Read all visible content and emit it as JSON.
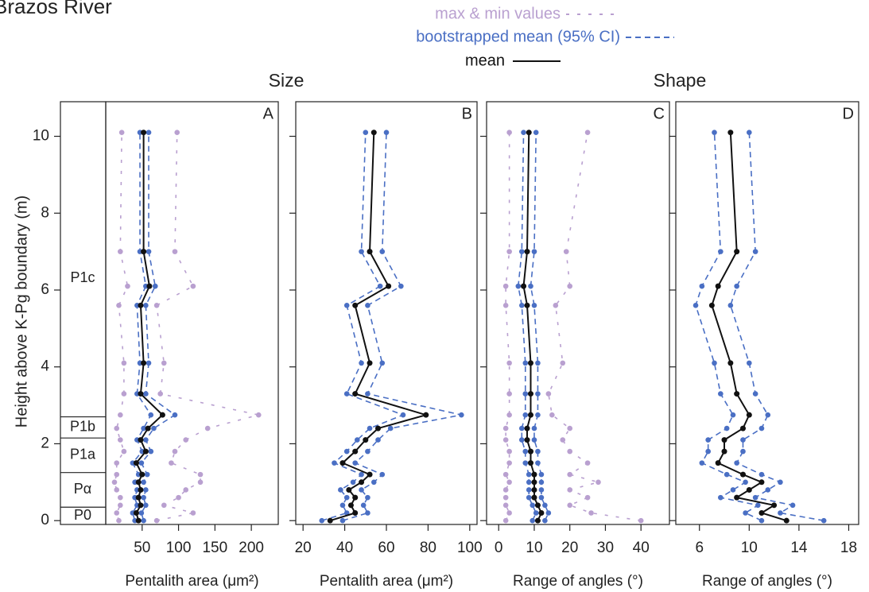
{
  "title": "Brazos River",
  "legend": [
    {
      "label": "max & min values",
      "color": "#b9a0d0",
      "dash": "4 10"
    },
    {
      "label": "bootstrapped mean (95% CI)",
      "color": "#4a6fc4",
      "dash": "7 5"
    },
    {
      "label": "mean",
      "color": "#111111",
      "dash": "none"
    }
  ],
  "groups": [
    {
      "label": "Size",
      "panels": [
        0,
        1
      ]
    },
    {
      "label": "Shape",
      "panels": [
        2,
        3
      ]
    }
  ],
  "ylabel": "Height above K-Pg boundary (m)",
  "ylim": [
    -0.1,
    10.9
  ],
  "yticks": [
    0,
    2,
    4,
    6,
    8,
    10
  ],
  "zones": [
    {
      "label": "P0",
      "from": -0.1,
      "to": 0.35
    },
    {
      "label": "Pα",
      "from": 0.35,
      "to": 1.25
    },
    {
      "label": "P1a",
      "from": 1.25,
      "to": 2.15
    },
    {
      "label": "P1b",
      "from": 2.15,
      "to": 2.7
    },
    {
      "label": "P1c",
      "from": 2.7,
      "to": 10.9
    }
  ],
  "heights": [
    0,
    0.2,
    0.4,
    0.6,
    0.8,
    1.0,
    1.2,
    1.5,
    1.8,
    2.1,
    2.4,
    2.75,
    3.3,
    4.1,
    5.6,
    6.1,
    7.0,
    10.1
  ],
  "chart_data": [
    {
      "type": "line",
      "letter": "A",
      "xlabel": "Pentalith area (μm²)",
      "xlim": [
        0,
        237
      ],
      "xticks": [
        50,
        100,
        150,
        200
      ],
      "mean": [
        45,
        42,
        48,
        45,
        48,
        45,
        50,
        42,
        55,
        48,
        58,
        78,
        48,
        52,
        48,
        60,
        52,
        52
      ],
      "ci_low": [
        40,
        37,
        43,
        40,
        43,
        40,
        45,
        37,
        50,
        43,
        52,
        62,
        43,
        47,
        43,
        55,
        47,
        47
      ],
      "ci_high": [
        52,
        49,
        55,
        52,
        55,
        52,
        57,
        49,
        62,
        55,
        66,
        95,
        55,
        59,
        55,
        68,
        59,
        59
      ],
      "min": [
        18,
        15,
        20,
        20,
        15,
        12,
        15,
        15,
        25,
        20,
        15,
        20,
        25,
        25,
        18,
        30,
        20,
        22
      ],
      "max": [
        70,
        120,
        80,
        100,
        110,
        130,
        130,
        90,
        95,
        110,
        140,
        210,
        75,
        80,
        70,
        120,
        95,
        98
      ]
    },
    {
      "type": "line",
      "letter": "B",
      "xlabel": "Pentalith area (μm²)",
      "xlim": [
        16.5,
        103.5
      ],
      "xticks": [
        20,
        40,
        60,
        80,
        100
      ],
      "mean": [
        33,
        45,
        43,
        45,
        42,
        48,
        52,
        39,
        45,
        50,
        56,
        79,
        45,
        52,
        45,
        61,
        52,
        54
      ],
      "ci_low": [
        29,
        41,
        39,
        41,
        38,
        44,
        48,
        35,
        41,
        46,
        52,
        68,
        41,
        48,
        41,
        57,
        48,
        50
      ],
      "ci_high": [
        39,
        51,
        49,
        51,
        48,
        54,
        58,
        45,
        51,
        56,
        62,
        96,
        51,
        58,
        51,
        67,
        58,
        60
      ]
    },
    {
      "type": "line",
      "letter": "C",
      "xlabel": "Range of angles (°)",
      "xlim": [
        -3.4,
        48
      ],
      "xticks": [
        0,
        10,
        20,
        30,
        40
      ],
      "mean": [
        11,
        12,
        11,
        10,
        10,
        10,
        10,
        9,
        9,
        8,
        8,
        9,
        9,
        9,
        8,
        7,
        8,
        8.5
      ],
      "ci_low": [
        9.5,
        10.5,
        9.5,
        8.5,
        8.5,
        8.5,
        8.5,
        7.5,
        7.5,
        6.5,
        6.5,
        7.5,
        7.5,
        7.5,
        6.5,
        5.5,
        6.5,
        7
      ],
      "ci_high": [
        13,
        14,
        13,
        12,
        12,
        12,
        12,
        11,
        11,
        10,
        10,
        11,
        11,
        11,
        10,
        9,
        10,
        10.5
      ],
      "min": [
        2,
        3,
        2,
        2,
        2,
        3,
        2,
        3,
        3,
        2,
        2,
        3,
        3,
        3,
        2,
        2,
        3,
        3
      ],
      "max": [
        40,
        26,
        20,
        25,
        20,
        28,
        20,
        25,
        20,
        18,
        20,
        15,
        14,
        18,
        16,
        20,
        19,
        25
      ]
    },
    {
      "type": "line",
      "letter": "D",
      "xlabel": "Range of angles (°)",
      "xlim": [
        4.1,
        18.8
      ],
      "xticks": [
        6,
        10,
        14,
        18
      ],
      "mean": [
        13,
        11,
        12,
        9,
        10,
        11,
        9.5,
        7.5,
        8,
        8,
        9.5,
        10,
        9,
        8.5,
        7,
        7.5,
        9,
        8.5
      ],
      "ci_low": [
        11,
        9.7,
        10.7,
        7.7,
        8.7,
        9.7,
        8.2,
        6.2,
        6.7,
        6.7,
        8.2,
        8.7,
        7.7,
        7.2,
        5.7,
        6.2,
        7.7,
        7.2
      ],
      "ci_high": [
        16,
        12.5,
        13.5,
        10.5,
        11.5,
        12.5,
        11,
        9,
        9.5,
        9.5,
        11,
        11.5,
        10.5,
        10,
        8.5,
        9,
        10.5,
        10
      ]
    }
  ]
}
